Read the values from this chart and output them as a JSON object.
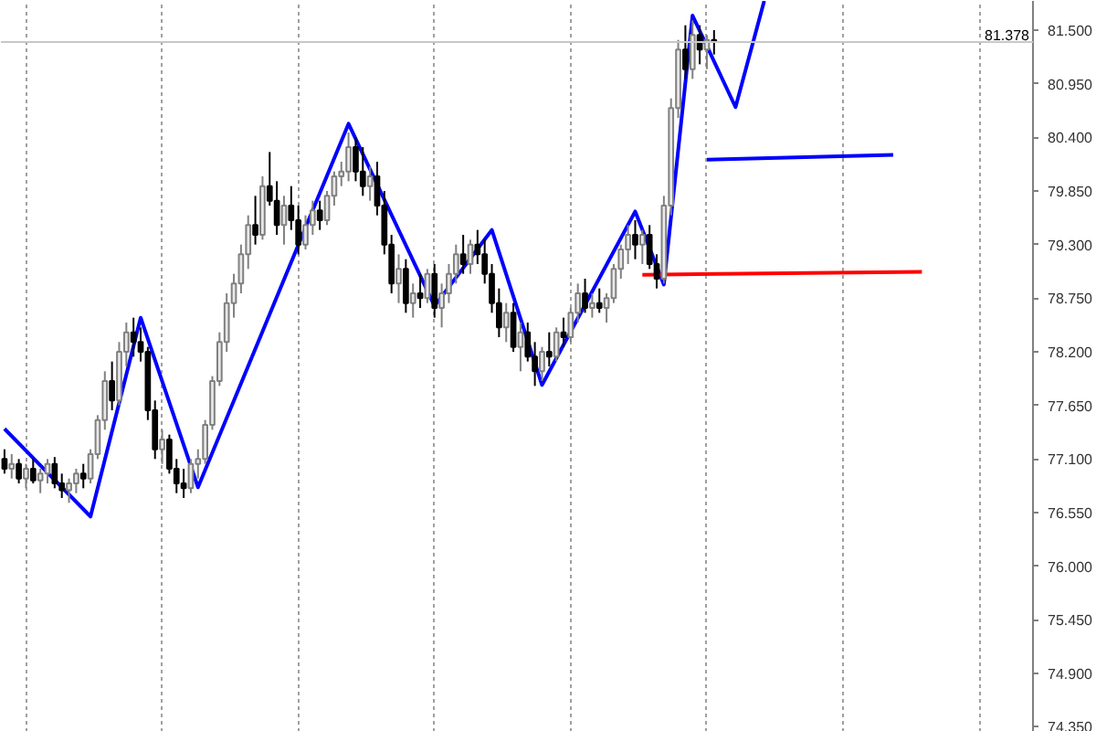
{
  "chart_data": {
    "type": "candlestick",
    "categories": [
      null,
      null,
      null,
      null,
      null,
      null,
      null,
      null,
      null,
      null,
      null,
      null,
      null,
      null,
      null,
      null,
      null,
      null,
      null,
      null,
      null,
      null,
      null,
      null,
      null,
      null,
      null,
      null,
      null,
      null,
      null,
      null,
      null,
      null,
      null,
      null,
      null,
      null,
      null,
      null,
      null,
      null,
      null,
      null,
      null,
      null,
      null,
      null,
      null,
      null,
      null,
      null,
      null,
      null,
      null,
      null,
      null,
      null,
      null,
      null,
      null,
      null,
      null,
      null,
      null,
      null,
      null,
      null,
      null,
      null,
      null,
      null,
      null,
      null,
      null,
      null,
      null,
      null,
      null,
      null,
      null,
      null,
      null,
      null,
      null,
      null,
      null,
      null,
      null,
      null,
      null,
      null,
      null,
      null,
      null,
      null,
      null,
      null,
      null,
      null,
      null,
      null,
      null,
      null,
      null,
      null,
      null,
      null,
      null,
      null,
      null,
      null,
      null,
      null,
      null,
      null,
      null,
      null,
      null,
      null,
      null,
      null,
      null,
      null,
      null,
      null,
      null,
      null,
      null,
      null,
      null,
      null,
      null,
      null,
      null,
      null,
      null,
      null,
      null,
      null,
      null,
      null,
      null,
      null
    ],
    "ohlc": [
      [
        77.1,
        77.2,
        76.95,
        77.0
      ],
      [
        77.0,
        77.15,
        76.9,
        77.05
      ],
      [
        77.05,
        77.1,
        76.85,
        76.9
      ],
      [
        76.9,
        77.05,
        76.8,
        77.0
      ],
      [
        77.0,
        77.1,
        76.85,
        76.88
      ],
      [
        76.88,
        77.0,
        76.75,
        76.95
      ],
      [
        76.95,
        77.1,
        76.85,
        77.05
      ],
      [
        77.05,
        77.12,
        76.8,
        76.85
      ],
      [
        76.85,
        76.95,
        76.7,
        76.78
      ],
      [
        76.78,
        76.9,
        76.65,
        76.85
      ],
      [
        76.85,
        77.0,
        76.75,
        76.95
      ],
      [
        76.95,
        77.05,
        76.8,
        76.9
      ],
      [
        76.9,
        77.2,
        76.85,
        77.15
      ],
      [
        77.15,
        77.55,
        77.1,
        77.5
      ],
      [
        77.5,
        78.0,
        77.4,
        77.9
      ],
      [
        77.9,
        78.1,
        77.6,
        77.7
      ],
      [
        77.7,
        78.3,
        77.65,
        78.2
      ],
      [
        78.2,
        78.5,
        78.05,
        78.4
      ],
      [
        78.4,
        78.55,
        78.15,
        78.3
      ],
      [
        78.3,
        78.45,
        78.1,
        78.2
      ],
      [
        78.2,
        78.25,
        77.5,
        77.6
      ],
      [
        77.6,
        77.7,
        77.1,
        77.2
      ],
      [
        77.2,
        77.4,
        77.05,
        77.3
      ],
      [
        77.3,
        77.35,
        76.95,
        77.0
      ],
      [
        77.0,
        77.1,
        76.75,
        76.85
      ],
      [
        76.85,
        77.0,
        76.7,
        76.8
      ],
      [
        76.8,
        77.1,
        76.75,
        77.05
      ],
      [
        77.05,
        77.2,
        76.9,
        77.1
      ],
      [
        77.1,
        77.5,
        77.05,
        77.45
      ],
      [
        77.45,
        77.95,
        77.4,
        77.9
      ],
      [
        77.9,
        78.4,
        77.85,
        78.3
      ],
      [
        78.3,
        78.8,
        78.2,
        78.7
      ],
      [
        78.7,
        79.0,
        78.55,
        78.9
      ],
      [
        78.9,
        79.3,
        78.8,
        79.2
      ],
      [
        79.2,
        79.6,
        79.05,
        79.5
      ],
      [
        79.5,
        79.8,
        79.3,
        79.4
      ],
      [
        79.4,
        80.0,
        79.35,
        79.9
      ],
      [
        79.9,
        80.25,
        79.7,
        79.75
      ],
      [
        79.75,
        79.95,
        79.4,
        79.5
      ],
      [
        79.5,
        79.8,
        79.3,
        79.7
      ],
      [
        79.7,
        79.9,
        79.45,
        79.55
      ],
      [
        79.55,
        79.7,
        79.2,
        79.3
      ],
      [
        79.3,
        79.6,
        79.25,
        79.5
      ],
      [
        79.5,
        79.75,
        79.4,
        79.65
      ],
      [
        79.65,
        79.75,
        79.45,
        79.55
      ],
      [
        79.55,
        79.85,
        79.5,
        79.8
      ],
      [
        79.8,
        80.05,
        79.7,
        80.0
      ],
      [
        80.0,
        80.15,
        79.9,
        80.05
      ],
      [
        80.05,
        80.45,
        79.95,
        80.3
      ],
      [
        80.3,
        80.4,
        79.95,
        80.05
      ],
      [
        80.05,
        80.3,
        79.8,
        79.9
      ],
      [
        79.9,
        80.1,
        79.75,
        80.0
      ],
      [
        80.0,
        80.15,
        79.6,
        79.7
      ],
      [
        79.7,
        79.85,
        79.2,
        79.3
      ],
      [
        79.3,
        79.4,
        78.8,
        78.9
      ],
      [
        78.9,
        79.2,
        78.7,
        79.05
      ],
      [
        79.05,
        79.15,
        78.6,
        78.7
      ],
      [
        78.7,
        78.9,
        78.55,
        78.8
      ],
      [
        78.8,
        79.0,
        78.65,
        78.75
      ],
      [
        78.75,
        79.05,
        78.7,
        79.0
      ],
      [
        79.0,
        79.1,
        78.55,
        78.65
      ],
      [
        78.65,
        78.9,
        78.45,
        78.8
      ],
      [
        78.8,
        79.1,
        78.7,
        79.0
      ],
      [
        79.0,
        79.3,
        78.9,
        79.2
      ],
      [
        79.2,
        79.4,
        79.0,
        79.1
      ],
      [
        79.1,
        79.35,
        79.0,
        79.3
      ],
      [
        79.3,
        79.45,
        79.1,
        79.2
      ],
      [
        79.2,
        79.35,
        78.9,
        79.0
      ],
      [
        79.0,
        79.1,
        78.6,
        78.7
      ],
      [
        78.7,
        78.85,
        78.35,
        78.45
      ],
      [
        78.45,
        78.7,
        78.3,
        78.6
      ],
      [
        78.6,
        78.7,
        78.2,
        78.25
      ],
      [
        78.25,
        78.5,
        78.0,
        78.4
      ],
      [
        78.4,
        78.5,
        78.1,
        78.15
      ],
      [
        78.15,
        78.3,
        77.85,
        78.0
      ],
      [
        78.0,
        78.25,
        77.9,
        78.2
      ],
      [
        78.2,
        78.4,
        78.05,
        78.15
      ],
      [
        78.15,
        78.45,
        78.1,
        78.4
      ],
      [
        78.4,
        78.55,
        78.25,
        78.35
      ],
      [
        78.35,
        78.65,
        78.3,
        78.6
      ],
      [
        78.6,
        78.9,
        78.5,
        78.8
      ],
      [
        78.8,
        78.95,
        78.6,
        78.65
      ],
      [
        78.65,
        78.8,
        78.55,
        78.7
      ],
      [
        78.7,
        78.85,
        78.6,
        78.65
      ],
      [
        78.65,
        78.8,
        78.5,
        78.75
      ],
      [
        78.75,
        79.1,
        78.7,
        79.05
      ],
      [
        79.05,
        79.3,
        78.95,
        79.25
      ],
      [
        79.25,
        79.5,
        79.1,
        79.4
      ],
      [
        79.4,
        79.55,
        79.15,
        79.3
      ],
      [
        79.3,
        79.45,
        79.1,
        79.4
      ],
      [
        79.4,
        79.5,
        79.05,
        79.1
      ],
      [
        79.1,
        79.2,
        78.85,
        78.95
      ],
      [
        78.95,
        79.8,
        78.9,
        79.7
      ],
      [
        79.7,
        80.8,
        79.6,
        80.7
      ],
      [
        80.7,
        81.4,
        80.6,
        81.3
      ],
      [
        81.3,
        81.55,
        81.0,
        81.1
      ],
      [
        81.1,
        81.6,
        81.0,
        81.45
      ],
      [
        81.45,
        81.55,
        81.15,
        81.3
      ],
      [
        81.3,
        81.45,
        81.1,
        81.4
      ],
      [
        81.4,
        81.5,
        81.25,
        81.378
      ],
      null,
      null,
      null,
      null,
      null,
      null,
      null,
      null,
      null,
      null,
      null,
      null,
      null,
      null,
      null,
      null,
      null,
      null,
      null,
      null,
      null,
      null,
      null,
      null,
      null,
      null,
      null,
      null,
      null,
      null,
      null,
      null,
      null,
      null,
      null,
      null,
      null,
      null,
      null,
      null,
      null,
      null,
      null,
      null
    ],
    "series": [
      {
        "type": "line",
        "color": "#0000ff",
        "values": [
          77.41,
          null,
          null,
          null,
          null,
          null,
          null,
          null,
          null,
          null,
          null,
          null,
          76.51,
          null,
          null,
          null,
          null,
          null,
          null,
          78.55,
          null,
          null,
          null,
          null,
          null,
          null,
          null,
          76.81,
          null,
          null,
          null,
          null,
          null,
          null,
          null,
          null,
          null,
          null,
          null,
          null,
          null,
          null,
          null,
          null,
          null,
          null,
          null,
          null,
          80.54,
          null,
          null,
          null,
          null,
          null,
          null,
          null,
          null,
          null,
          null,
          null,
          78.67,
          null,
          null,
          null,
          null,
          null,
          null,
          null,
          79.45,
          null,
          null,
          null,
          null,
          null,
          null,
          77.86,
          null,
          null,
          null,
          null,
          null,
          null,
          null,
          null,
          null,
          null,
          null,
          null,
          79.64,
          null,
          null,
          null,
          78.89,
          null,
          null,
          null,
          81.65,
          null,
          null,
          null,
          null,
          null,
          80.71,
          null,
          null,
          null,
          81.8,
          null,
          null,
          null,
          null,
          null,
          null,
          null,
          null,
          null,
          null,
          null,
          null,
          null,
          null,
          null,
          null,
          null,
          null,
          null,
          null,
          null,
          null,
          null,
          null,
          null,
          null,
          null,
          null,
          null,
          null,
          null,
          null,
          null,
          null,
          null,
          null,
          null
        ]
      },
      {
        "type": "line",
        "color": "#0000ff",
        "values": [
          null,
          null,
          null,
          null,
          null,
          null,
          null,
          null,
          null,
          null,
          null,
          null,
          null,
          null,
          null,
          null,
          null,
          null,
          null,
          null,
          null,
          null,
          null,
          null,
          null,
          null,
          null,
          null,
          null,
          null,
          null,
          null,
          null,
          null,
          null,
          null,
          null,
          null,
          null,
          null,
          null,
          null,
          null,
          null,
          null,
          null,
          null,
          null,
          null,
          null,
          null,
          null,
          null,
          null,
          null,
          null,
          null,
          null,
          null,
          null,
          null,
          null,
          null,
          null,
          null,
          null,
          null,
          null,
          null,
          null,
          null,
          null,
          null,
          null,
          null,
          null,
          null,
          null,
          null,
          null,
          null,
          null,
          null,
          null,
          null,
          null,
          null,
          null,
          null,
          null,
          null,
          null,
          null,
          null,
          null,
          null,
          null,
          null,
          80.17,
          null,
          null,
          null,
          null,
          null,
          null,
          null,
          null,
          null,
          null,
          null,
          null,
          null,
          null,
          null,
          null,
          null,
          null,
          null,
          null,
          null,
          null,
          null,
          null,
          null,
          80.22,
          null,
          null,
          null,
          null,
          null,
          null,
          null,
          null,
          null,
          null,
          null,
          null,
          null,
          null,
          null,
          null,
          null,
          null,
          null
        ]
      },
      {
        "type": "line",
        "color": "#ff0000",
        "values": [
          null,
          null,
          null,
          null,
          null,
          null,
          null,
          null,
          null,
          null,
          null,
          null,
          null,
          null,
          null,
          null,
          null,
          null,
          null,
          null,
          null,
          null,
          null,
          null,
          null,
          null,
          null,
          null,
          null,
          null,
          null,
          null,
          null,
          null,
          null,
          null,
          null,
          null,
          null,
          null,
          null,
          null,
          null,
          null,
          null,
          null,
          null,
          null,
          null,
          null,
          null,
          null,
          null,
          null,
          null,
          null,
          null,
          null,
          null,
          null,
          null,
          null,
          null,
          null,
          null,
          null,
          null,
          null,
          null,
          null,
          null,
          null,
          null,
          null,
          null,
          null,
          null,
          null,
          null,
          null,
          null,
          null,
          null,
          null,
          null,
          null,
          null,
          null,
          null,
          78.99,
          null,
          null,
          null,
          null,
          null,
          null,
          null,
          null,
          null,
          null,
          null,
          null,
          null,
          null,
          null,
          null,
          null,
          null,
          null,
          null,
          null,
          null,
          null,
          null,
          null,
          null,
          null,
          null,
          null,
          null,
          null,
          null,
          null,
          null,
          null,
          null,
          null,
          null,
          79.02,
          null,
          null,
          null,
          null,
          null,
          null,
          null,
          null,
          null,
          null,
          null,
          null,
          null,
          null,
          null
        ]
      }
    ],
    "ref_lines": [
      {
        "axis": "y",
        "value": 81.378,
        "label": "81.378",
        "color": "#c8c8c8"
      }
    ],
    "ylim": [
      74.3,
      81.8
    ],
    "yticks": [
      {
        "value": 81.5,
        "label": "81.500"
      },
      {
        "value": 80.95,
        "label": "80.950"
      },
      {
        "value": 80.4,
        "label": "80.400"
      },
      {
        "value": 79.85,
        "label": "79.850"
      },
      {
        "value": 79.3,
        "label": "79.300"
      },
      {
        "value": 78.75,
        "label": "78.750"
      },
      {
        "value": 78.2,
        "label": "78.200"
      },
      {
        "value": 77.65,
        "label": "77.650"
      },
      {
        "value": 77.1,
        "label": "77.100"
      },
      {
        "value": 76.55,
        "label": "76.550"
      },
      {
        "value": 76.0,
        "label": "76.000"
      },
      {
        "value": 75.45,
        "label": "75.450"
      },
      {
        "value": 74.9,
        "label": "74.900"
      },
      {
        "value": 74.35,
        "label": "74.350"
      }
    ],
    "grid": "x",
    "tick_labels": "y"
  }
}
